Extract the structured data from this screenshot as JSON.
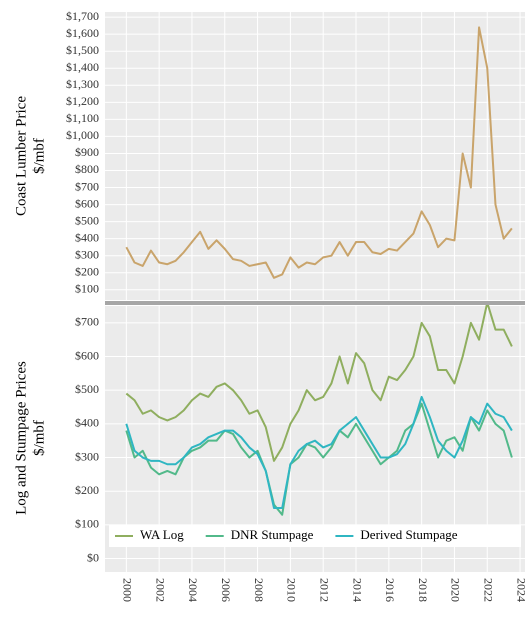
{
  "chart_data": [
    {
      "type": "line",
      "ylabel": [
        "Coast Lumber Price",
        "$/mbf"
      ],
      "x": [
        2000,
        2000.5,
        2001,
        2001.5,
        2002,
        2002.5,
        2003,
        2003.5,
        2004,
        2004.5,
        2005,
        2005.5,
        2006,
        2006.5,
        2007,
        2007.5,
        2008,
        2008.5,
        2009,
        2009.5,
        2010,
        2010.5,
        2011,
        2011.5,
        2012,
        2012.5,
        2013,
        2013.5,
        2014,
        2014.5,
        2015,
        2015.5,
        2016,
        2016.5,
        2017,
        2017.5,
        2018,
        2018.5,
        2019,
        2019.5,
        2020,
        2020.5,
        2021,
        2021.5,
        2022,
        2022.5,
        2023,
        2023.5
      ],
      "series": [
        {
          "name": "Coast Lumber",
          "color": "#c9a46b",
          "values": [
            350,
            260,
            240,
            330,
            260,
            250,
            270,
            320,
            380,
            440,
            340,
            390,
            340,
            280,
            270,
            240,
            250,
            260,
            170,
            190,
            290,
            230,
            260,
            250,
            290,
            300,
            380,
            300,
            380,
            380,
            320,
            310,
            340,
            330,
            380,
            430,
            560,
            480,
            350,
            400,
            390,
            900,
            700,
            1640,
            1400,
            600,
            400,
            460
          ]
        }
      ],
      "xlim": [
        1998.7,
        2024.3
      ],
      "ylim": [
        40,
        1730
      ],
      "yticks": [
        {
          "value": 100,
          "label": "$100"
        },
        {
          "value": 200,
          "label": "$200"
        },
        {
          "value": 300,
          "label": "$300"
        },
        {
          "value": 400,
          "label": "$400"
        },
        {
          "value": 500,
          "label": "$500"
        },
        {
          "value": 600,
          "label": "$600"
        },
        {
          "value": 700,
          "label": "$700"
        },
        {
          "value": 800,
          "label": "$800"
        },
        {
          "value": 900,
          "label": "$900"
        },
        {
          "value": 1000,
          "label": "$1,000"
        },
        {
          "value": 1100,
          "label": "$1,100"
        },
        {
          "value": 1200,
          "label": "$1,200"
        },
        {
          "value": 1300,
          "label": "$1,300"
        },
        {
          "value": 1400,
          "label": "$1,400"
        },
        {
          "value": 1500,
          "label": "$1,500"
        },
        {
          "value": 1600,
          "label": "$1,600"
        },
        {
          "value": 1700,
          "label": "$1,700"
        }
      ],
      "grid": true
    },
    {
      "type": "line",
      "ylabel": [
        "Log and Stumpage Prices",
        "$/mbf"
      ],
      "x": [
        2000,
        2000.5,
        2001,
        2001.5,
        2002,
        2002.5,
        2003,
        2003.5,
        2004,
        2004.5,
        2005,
        2005.5,
        2006,
        2006.5,
        2007,
        2007.5,
        2008,
        2008.5,
        2009,
        2009.5,
        2010,
        2010.5,
        2011,
        2011.5,
        2012,
        2012.5,
        2013,
        2013.5,
        2014,
        2014.5,
        2015,
        2015.5,
        2016,
        2016.5,
        2017,
        2017.5,
        2018,
        2018.5,
        2019,
        2019.5,
        2020,
        2020.5,
        2021,
        2021.5,
        2022,
        2022.5,
        2023,
        2023.5
      ],
      "series": [
        {
          "name": "WA Log",
          "color": "#8fae5f",
          "values": [
            490,
            470,
            430,
            440,
            420,
            410,
            420,
            440,
            470,
            490,
            480,
            510,
            520,
            500,
            470,
            430,
            440,
            390,
            290,
            330,
            400,
            440,
            500,
            470,
            480,
            520,
            600,
            520,
            610,
            580,
            500,
            470,
            540,
            530,
            560,
            600,
            700,
            660,
            560,
            560,
            520,
            600,
            700,
            650,
            760,
            680,
            680,
            630
          ]
        },
        {
          "name": "DNR Stumpage",
          "color": "#52b98a",
          "values": [
            380,
            300,
            320,
            270,
            250,
            260,
            250,
            300,
            320,
            330,
            350,
            350,
            380,
            370,
            330,
            300,
            320,
            260,
            160,
            130,
            280,
            300,
            340,
            330,
            300,
            330,
            380,
            360,
            400,
            360,
            320,
            280,
            300,
            320,
            380,
            400,
            460,
            380,
            300,
            350,
            360,
            320,
            420,
            380,
            440,
            400,
            380,
            300
          ]
        },
        {
          "name": "Derived Stumpage",
          "color": "#2fb6c2",
          "values": [
            400,
            320,
            300,
            290,
            290,
            280,
            280,
            300,
            330,
            340,
            360,
            370,
            380,
            380,
            360,
            330,
            310,
            260,
            150,
            150,
            280,
            320,
            340,
            350,
            330,
            340,
            380,
            400,
            420,
            380,
            340,
            300,
            300,
            310,
            340,
            400,
            480,
            420,
            350,
            320,
            300,
            350,
            420,
            400,
            460,
            430,
            420,
            380
          ]
        }
      ],
      "xlim": [
        1998.7,
        2024.3
      ],
      "xticks": [
        2000,
        2002,
        2004,
        2006,
        2008,
        2010,
        2012,
        2014,
        2016,
        2018,
        2020,
        2022,
        2024
      ],
      "ylim": [
        -40,
        750
      ],
      "yticks": [
        {
          "value": 0,
          "label": "$0"
        },
        {
          "value": 100,
          "label": "$100"
        },
        {
          "value": 200,
          "label": "$200"
        },
        {
          "value": 300,
          "label": "$300"
        },
        {
          "value": 400,
          "label": "$400"
        },
        {
          "value": 500,
          "label": "$500"
        },
        {
          "value": 600,
          "label": "$600"
        },
        {
          "value": 700,
          "label": "$700"
        }
      ],
      "grid": true,
      "legend": "bottom"
    }
  ]
}
